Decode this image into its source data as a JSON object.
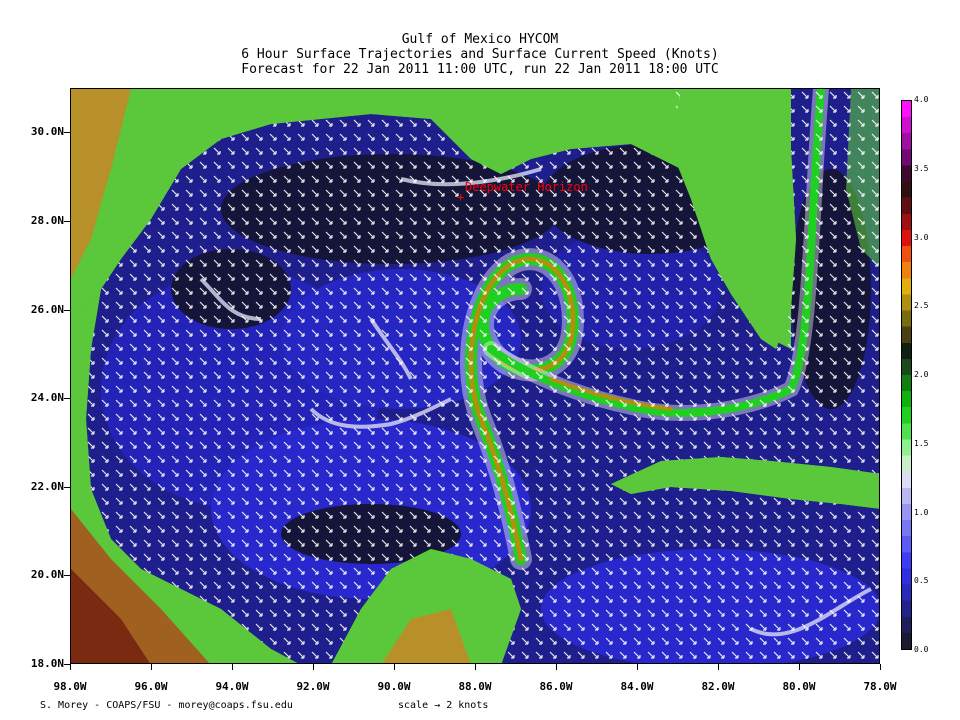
{
  "title": {
    "line1": "Gulf of Mexico HYCOM",
    "line2": "6 Hour Surface Trajectories and Surface Current Speed (Knots)",
    "line3": "Forecast for 22 Jan 2011 11:00 UTC, run 22 Jan 2011 18:00 UTC"
  },
  "map": {
    "lon_range": [
      -98,
      -78
    ],
    "lat_range": [
      18,
      31
    ],
    "marker": {
      "label": "Deepwater Horizon",
      "lon": -88.37,
      "lat": 28.74,
      "color": "#ff0000"
    }
  },
  "axes": {
    "y_ticks": [
      {
        "lat": 30,
        "label": "30.0N"
      },
      {
        "lat": 28,
        "label": "28.0N"
      },
      {
        "lat": 26,
        "label": "26.0N"
      },
      {
        "lat": 24,
        "label": "24.0N"
      },
      {
        "lat": 22,
        "label": "22.0N"
      },
      {
        "lat": 20,
        "label": "20.0N"
      },
      {
        "lat": 18,
        "label": "18.0N"
      }
    ],
    "x_ticks": [
      {
        "lon": -98,
        "label": "98.0W"
      },
      {
        "lon": -96,
        "label": "96.0W"
      },
      {
        "lon": -94,
        "label": "94.0W"
      },
      {
        "lon": -92,
        "label": "92.0W"
      },
      {
        "lon": -90,
        "label": "90.0W"
      },
      {
        "lon": -88,
        "label": "88.0W"
      },
      {
        "lon": -86,
        "label": "86.0W"
      },
      {
        "lon": -84,
        "label": "84.0W"
      },
      {
        "lon": -82,
        "label": "82.0W"
      },
      {
        "lon": -80,
        "label": "80.0W"
      },
      {
        "lon": -78,
        "label": "78.0W"
      }
    ]
  },
  "colorbar": {
    "min": 0,
    "max": 4.0,
    "labels": [
      {
        "value": 4.0,
        "label": "4.0"
      },
      {
        "value": 3.5,
        "label": "3.5"
      },
      {
        "value": 3.0,
        "label": "3.0"
      },
      {
        "value": 2.5,
        "label": "2.5"
      },
      {
        "value": 2.0,
        "label": "2.0"
      },
      {
        "value": 1.5,
        "label": "1.5"
      },
      {
        "value": 1.0,
        "label": "1.0"
      },
      {
        "value": 0.5,
        "label": "0.5"
      },
      {
        "value": 0.0,
        "label": "0.0"
      }
    ],
    "colors": [
      "#1a1a2e",
      "#1e1e5a",
      "#23238c",
      "#2a2ab8",
      "#2f2fe0",
      "#3c3cf5",
      "#5a5af5",
      "#7878f5",
      "#9696f0",
      "#b8b8f0",
      "#dcdcf5",
      "#c8f0c8",
      "#90f090",
      "#50e050",
      "#20d020",
      "#10b010",
      "#108010",
      "#1a4a1a",
      "#102010",
      "#4a4010",
      "#7a6a10",
      "#b09010",
      "#e0b010",
      "#f08010",
      "#f05010",
      "#e01010",
      "#a01010",
      "#601010",
      "#301010",
      "#400a30",
      "#700a70",
      "#a010a0",
      "#d010d0",
      "#ff10ff"
    ]
  },
  "footer": {
    "credit": "S. Morey - COAPS/FSU - morey@coaps.fsu.edu",
    "scale_text": "scale",
    "scale_arrow": "→",
    "scale_value": "2 knots"
  },
  "colors": {
    "deep_ocean": "#1a1a3a",
    "ocean_blue": "#2a2ad0",
    "land_green": "#5ac83a",
    "land_brown": "#b08030",
    "marker_red": "#ff0000"
  }
}
